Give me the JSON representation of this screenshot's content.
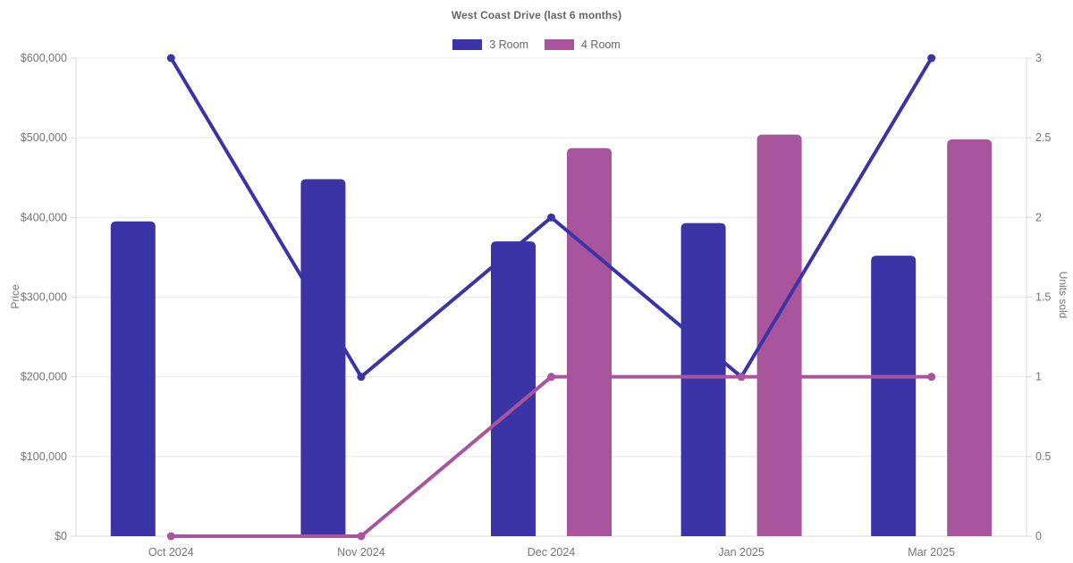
{
  "title": "West Coast Drive (last 6 months)",
  "legend": [
    {
      "label": "3 Room",
      "color": "#3b34a6"
    },
    {
      "label": "4 Room",
      "color": "#a9559e"
    }
  ],
  "chart_data": {
    "type": "combo-bar-line",
    "title": "West Coast Drive (last 6 months)",
    "categories": [
      "Oct 2024",
      "Nov 2024",
      "Dec 2024",
      "Jan 2025",
      "Mar 2025"
    ],
    "bar_series": [
      {
        "name": "3 Room",
        "axis": "left",
        "color": "#3b34a6",
        "values": [
          395000,
          448000,
          370000,
          393000,
          352000
        ]
      },
      {
        "name": "4 Room",
        "axis": "left",
        "color": "#a9559e",
        "values": [
          null,
          null,
          487000,
          504000,
          498000
        ]
      }
    ],
    "line_series": [
      {
        "name": "3 Room",
        "axis": "right",
        "color": "#3b34a6",
        "values": [
          3,
          1,
          2,
          1,
          3
        ]
      },
      {
        "name": "4 Room",
        "axis": "right",
        "color": "#a9559e",
        "values": [
          0,
          0,
          1,
          1,
          1
        ]
      }
    ],
    "left_axis": {
      "label": "Price",
      "min": 0,
      "max": 600000,
      "tick_step": 100000,
      "ticks": [
        "$0",
        "$100,000",
        "$200,000",
        "$300,000",
        "$400,000",
        "$500,000",
        "$600,000"
      ]
    },
    "right_axis": {
      "label": "Units sold",
      "min": 0,
      "max": 3,
      "tick_step": 0.5,
      "ticks": [
        "0",
        "0.5",
        "1",
        "1.5",
        "2",
        "2.5",
        "3"
      ]
    },
    "grid": true,
    "legend_position": "top",
    "colors": {
      "grid_line": "#e8e8e8",
      "axis_border": "#d8d8d8",
      "tick_text": "#757575"
    }
  }
}
